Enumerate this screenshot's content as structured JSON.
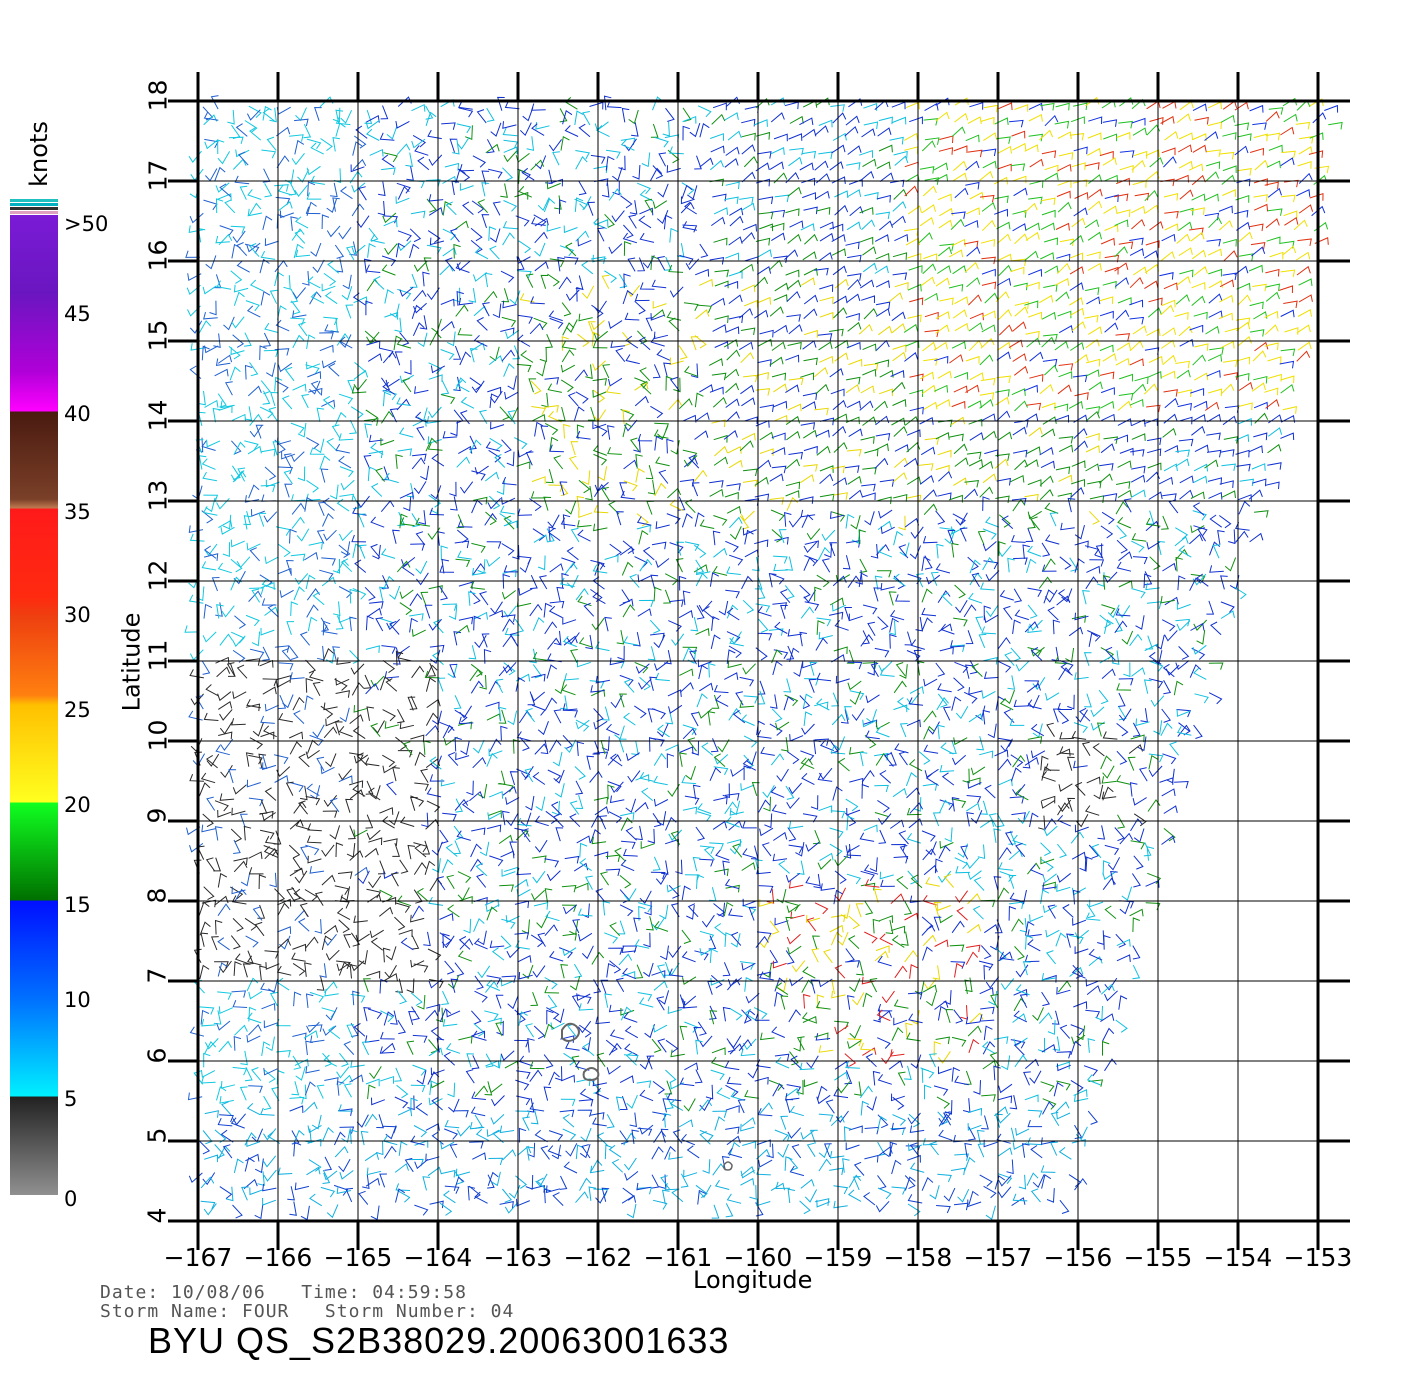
{
  "map": {
    "x_axis_title": "Longitude",
    "y_axis_title": "Latitude",
    "lon_range": [
      -167,
      -153
    ],
    "lat_range": [
      4,
      18
    ],
    "lon_ticks": [
      "-167",
      "-166",
      "-165",
      "-164",
      "-163",
      "-162",
      "-161",
      "-160",
      "-159",
      "-158",
      "-157",
      "-156",
      "-155",
      "-154",
      "-153"
    ],
    "lat_ticks": [
      "4",
      "5",
      "6",
      "7",
      "8",
      "9",
      "10",
      "11",
      "12",
      "13",
      "14",
      "15",
      "16",
      "17",
      "18"
    ],
    "grid": true,
    "field": "wind vectors (barbs)"
  },
  "colorbar": {
    "title": "knots",
    "labels": [
      ">50",
      "45",
      "40",
      "35",
      "30",
      "25",
      "20",
      "15",
      "10",
      "5",
      "0"
    ],
    "range": [
      0,
      50
    ]
  },
  "meta": {
    "line1": "Date: 10/08/06   Time: 04:59:58",
    "line2": "Storm Name: FOUR   Storm Number: 04",
    "title": "BYU QS_S2B38029.20063001633"
  }
}
